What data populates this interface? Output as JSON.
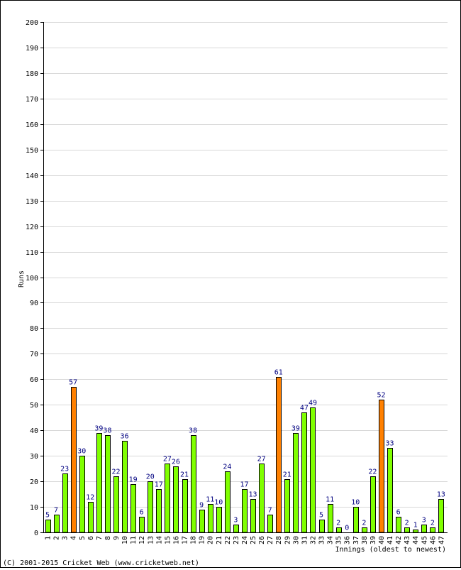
{
  "chart_data": {
    "type": "bar",
    "title": "",
    "xlabel": "Innings (oldest to newest)",
    "ylabel": "Runs",
    "ylim": [
      0,
      200
    ],
    "y_ticks": [
      0,
      10,
      20,
      30,
      40,
      50,
      60,
      70,
      80,
      90,
      100,
      110,
      120,
      130,
      140,
      150,
      160,
      170,
      180,
      190,
      200
    ],
    "grid": true,
    "categories": [
      "1",
      "2",
      "3",
      "4",
      "5",
      "6",
      "7",
      "8",
      "9",
      "10",
      "11",
      "12",
      "13",
      "14",
      "15",
      "16",
      "17",
      "18",
      "19",
      "20",
      "21",
      "22",
      "23",
      "24",
      "25",
      "26",
      "27",
      "28",
      "29",
      "30",
      "31",
      "32",
      "33",
      "34",
      "35",
      "36",
      "37",
      "38",
      "39",
      "40",
      "41",
      "42",
      "43",
      "44",
      "45",
      "46",
      "47"
    ],
    "values": [
      5,
      7,
      23,
      57,
      30,
      12,
      39,
      38,
      22,
      36,
      19,
      6,
      20,
      17,
      27,
      26,
      21,
      38,
      9,
      11,
      10,
      24,
      3,
      17,
      13,
      27,
      7,
      61,
      21,
      39,
      47,
      49,
      5,
      11,
      2,
      0,
      10,
      2,
      22,
      52,
      33,
      6,
      2,
      1,
      3,
      2,
      13
    ],
    "highlighted": [
      4,
      28,
      40
    ],
    "colors": {
      "normal": "#80ff00",
      "highlight": "#ff8000",
      "label": "#000080",
      "grid": "#d8d8d8",
      "axis": "#000000"
    }
  },
  "copyright": "(C) 2001-2015 Cricket Web (www.cricketweb.net)"
}
